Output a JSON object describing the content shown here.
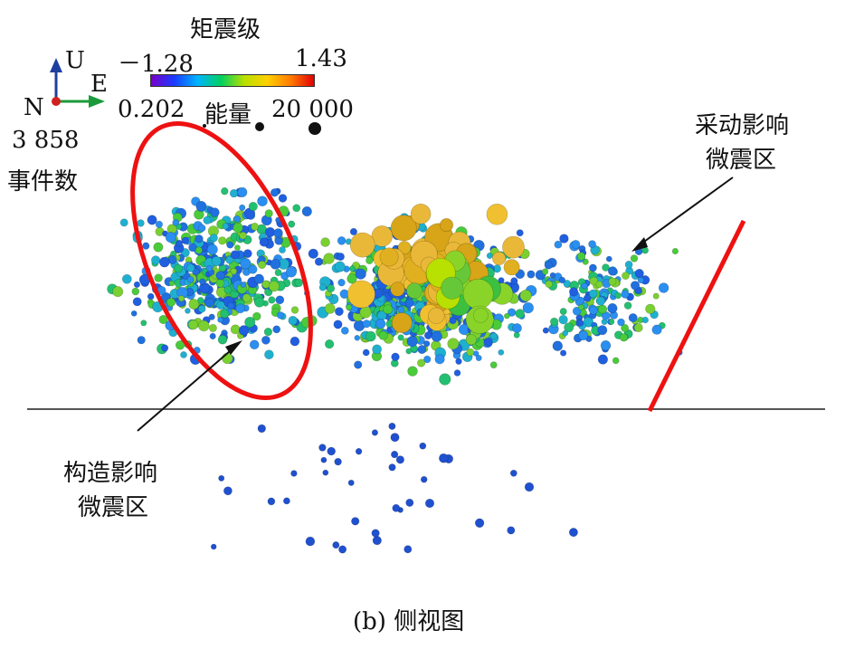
{
  "legend": {
    "moment_magnitude_label": "矩震级",
    "moment_magnitude_min": "－1.28",
    "moment_magnitude_max": "1.43",
    "energy_min": "0.202",
    "energy_label": "能量",
    "energy_max": "20 000",
    "event_count": "3 858",
    "event_count_label": "事件数",
    "colormap": [
      "#7a00c8",
      "#1a3cff",
      "#00b4ff",
      "#00d060",
      "#b8e000",
      "#ffd000",
      "#ff7a00",
      "#e00000"
    ]
  },
  "axes": {
    "up_label": "U",
    "east_label": "E",
    "north_label": "N",
    "colors": {
      "up": "#1f3f9f",
      "east": "#1a9a3a",
      "north": "#d02020"
    }
  },
  "annotations": {
    "mining_zone": [
      "采动影响",
      "微震区"
    ],
    "tectonic_zone": [
      "构造影响",
      "微震区"
    ]
  },
  "highlight_color": "#ee1111",
  "caption": "(b)  侧视图"
}
